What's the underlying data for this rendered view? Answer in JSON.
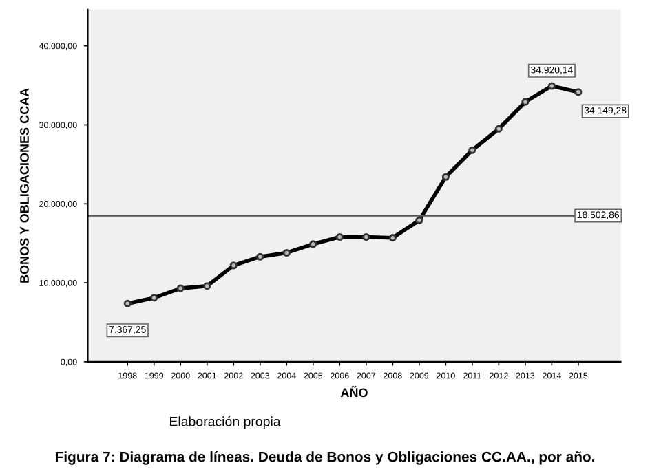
{
  "chart_data": {
    "type": "line",
    "xlabel": "AÑO",
    "ylabel": "BONOS Y OBLIGACIONES CCAA",
    "categories": [
      "1998",
      "1999",
      "2000",
      "2001",
      "2002",
      "2003",
      "2004",
      "2005",
      "2006",
      "2007",
      "2008",
      "2009",
      "2010",
      "2011",
      "2012",
      "2013",
      "2014",
      "2015"
    ],
    "series": [
      {
        "color": "#000000",
        "values": [
          7367.25,
          8100,
          9300,
          9600,
          12200,
          13300,
          13800,
          14900,
          15800,
          15800,
          15700,
          17900,
          23400,
          26800,
          29500,
          32900,
          34920.14,
          34149.28
        ],
        "value_labels": [
          "7.367,25",
          null,
          null,
          null,
          null,
          null,
          null,
          null,
          null,
          null,
          null,
          null,
          null,
          null,
          null,
          null,
          "34.920,14",
          "34.149,28"
        ]
      }
    ],
    "ylim": [
      0,
      44600
    ],
    "yticks": [
      {
        "value": 0,
        "label": "0,00"
      },
      {
        "value": 10000,
        "label": "10.000,00"
      },
      {
        "value": 20000,
        "label": "20.000,00"
      },
      {
        "value": 30000,
        "label": "30.000,00"
      },
      {
        "value": 40000,
        "label": "40.000,00"
      }
    ],
    "ref_lines": [
      {
        "axis": "y",
        "value": 18502.86,
        "label": "18.502,86",
        "color": "#555555"
      }
    ],
    "marker": "circle",
    "line_style": "solid",
    "grid": false,
    "legend": false,
    "annotations": [
      "Elaboración propia",
      "Figura 7: Diagrama de líneas. Deuda de Bonos y Obligaciones CC.AA., por año."
    ]
  }
}
